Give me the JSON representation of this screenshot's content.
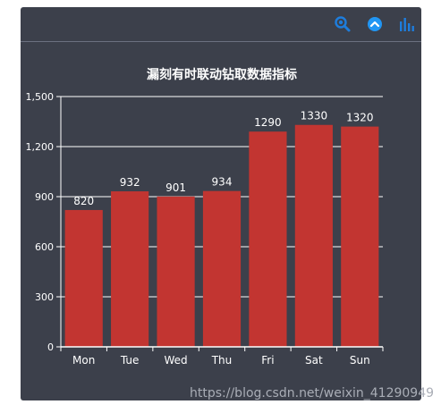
{
  "toolbar": {
    "icons": [
      "search-icon",
      "chevron-up-icon",
      "bar-chart-icon"
    ],
    "accent_color": "#1e7ddc"
  },
  "chart_data": {
    "type": "bar",
    "title": "漏刻有时联动钻取数据指标",
    "categories": [
      "Mon",
      "Tue",
      "Wed",
      "Thu",
      "Fri",
      "Sat",
      "Sun"
    ],
    "values": [
      820,
      932,
      901,
      934,
      1290,
      1330,
      1320
    ],
    "ylim": [
      0,
      1500
    ],
    "yticks": [
      "0",
      "300",
      "600",
      "900",
      "1,200",
      "1,500"
    ],
    "ytick_values": [
      0,
      300,
      600,
      900,
      1200,
      1500
    ],
    "bar_color": "#c23531",
    "grid": true,
    "data_labels": true
  },
  "watermark": "https://blog.csdn.net/weixin_41290949"
}
